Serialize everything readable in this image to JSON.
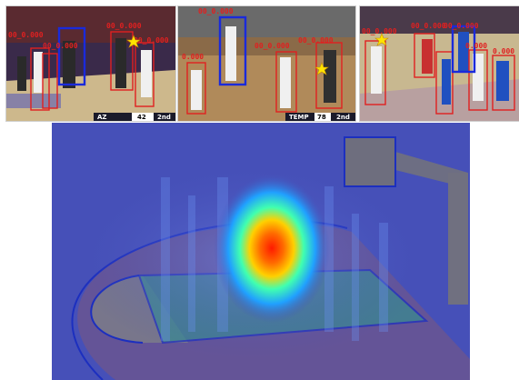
{
  "frames": [
    {
      "id": "frame-1",
      "bbox_labels": [
        "00_0.000",
        "00_0.000",
        "00_0.000",
        "00_0.000"
      ],
      "scoreboard": {
        "team": "AZ",
        "score": "42",
        "period": "2nd"
      }
    },
    {
      "id": "frame-2",
      "bbox_labels": [
        "00_0.000",
        "00_0.000",
        "00_0.000",
        "0.000"
      ],
      "scoreboard": {
        "team": "TEMP",
        "score": "78",
        "period": "2nd"
      }
    },
    {
      "id": "frame-3",
      "bbox_labels": [
        "00_0.000",
        "00_0.000",
        "00_0.000",
        "0.000",
        "0.000"
      ]
    }
  ],
  "colors": {
    "detection_box": "#e02020",
    "highlight_box": "#1a2adb",
    "star_marker": "#ffe400",
    "court_background": "#4650b8",
    "court_line": "#1c2fbf",
    "heat_peak": "#ff2000"
  },
  "icons": {
    "star_marker": "star-icon"
  }
}
